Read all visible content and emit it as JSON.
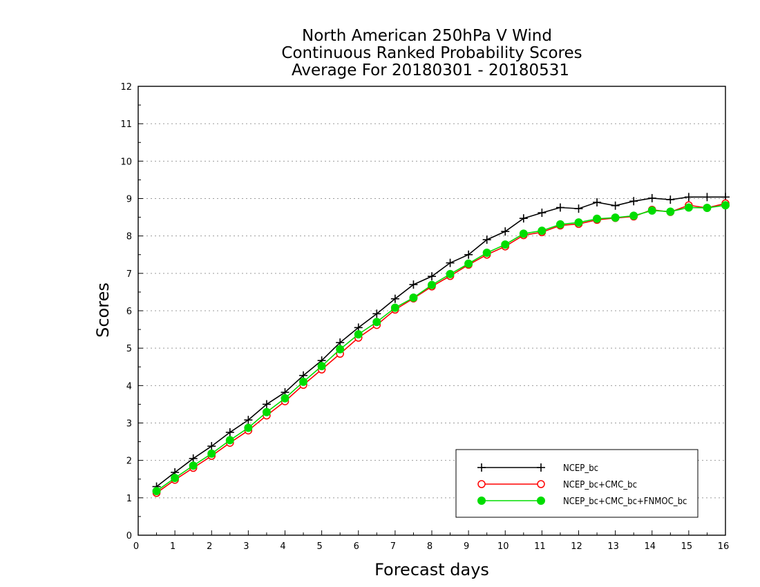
{
  "chart_data": {
    "type": "line",
    "title_lines": [
      "North American 250hPa V Wind",
      "Continuous Ranked Probability Scores",
      "Average For 20180301 - 20180531"
    ],
    "xlabel": "Forecast days",
    "ylabel": "Scores",
    "xlim": [
      0,
      16
    ],
    "ylim": [
      0,
      12
    ],
    "x_ticks": [
      "0",
      "1",
      "2",
      "3",
      "4",
      "5",
      "6",
      "7",
      "8",
      "9",
      "10",
      "11",
      "12",
      "13",
      "14",
      "15",
      "16"
    ],
    "y_ticks": [
      "0",
      "1",
      "2",
      "3",
      "4",
      "5",
      "6",
      "7",
      "8",
      "9",
      "10",
      "11",
      "12"
    ],
    "grid": "horizontal dotted",
    "legend_position": "bottom-right",
    "x": [
      0.5,
      1,
      1.5,
      2,
      2.5,
      3,
      3.5,
      4,
      4.5,
      5,
      5.5,
      6,
      6.5,
      7,
      7.5,
      8,
      8.5,
      9,
      9.5,
      10,
      10.5,
      11,
      11.5,
      12,
      12.5,
      13,
      13.5,
      14,
      14.5,
      15,
      15.5,
      16
    ],
    "series": [
      {
        "name": "NCEP_bc",
        "color": "#000000",
        "marker": "plus",
        "values": [
          1.3,
          1.68,
          2.05,
          2.38,
          2.75,
          3.08,
          3.5,
          3.82,
          4.27,
          4.67,
          5.15,
          5.55,
          5.92,
          6.32,
          6.7,
          6.92,
          7.28,
          7.5,
          7.9,
          8.12,
          8.47,
          8.62,
          8.76,
          8.73,
          8.9,
          8.81,
          8.93,
          9.01,
          8.97,
          9.04,
          9.04,
          9.04
        ]
      },
      {
        "name": "NCEP_bc+CMC_bc",
        "color": "#ff0000",
        "marker": "open-circle",
        "values": [
          1.13,
          1.48,
          1.8,
          2.12,
          2.47,
          2.8,
          3.2,
          3.58,
          4.02,
          4.43,
          4.85,
          5.28,
          5.62,
          6.03,
          6.33,
          6.65,
          6.93,
          7.23,
          7.5,
          7.72,
          8.02,
          8.1,
          8.28,
          8.32,
          8.43,
          8.48,
          8.52,
          8.7,
          8.64,
          8.82,
          8.75,
          8.87
        ]
      },
      {
        "name": "NCEP_bc+CMC_bc+FNMOC_bc",
        "color": "#00dd00",
        "marker": "filled-circle",
        "values": [
          1.18,
          1.53,
          1.86,
          2.18,
          2.54,
          2.87,
          3.29,
          3.66,
          4.1,
          4.52,
          4.97,
          5.37,
          5.7,
          6.08,
          6.35,
          6.69,
          6.98,
          7.26,
          7.55,
          7.77,
          8.06,
          8.14,
          8.31,
          8.36,
          8.46,
          8.49,
          8.54,
          8.68,
          8.65,
          8.76,
          8.75,
          8.82
        ]
      }
    ]
  }
}
